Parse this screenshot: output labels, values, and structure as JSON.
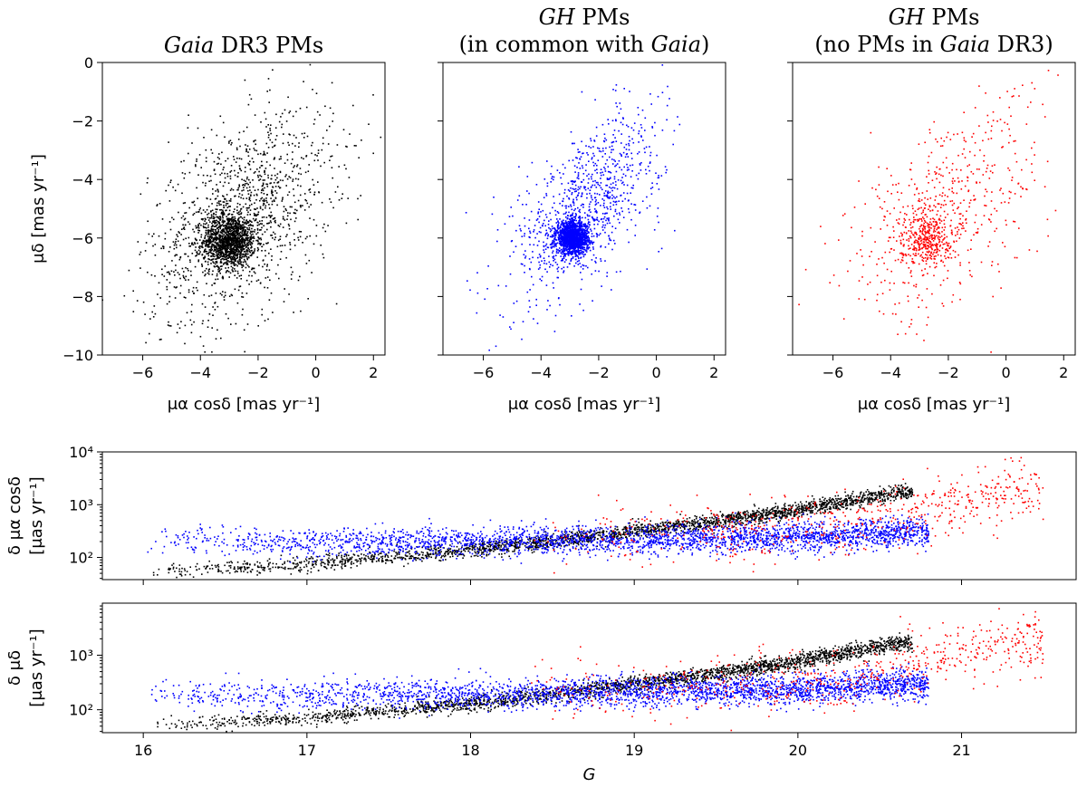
{
  "chart_data": [
    {
      "type": "scatter",
      "id": "panel-gaia",
      "title_parts": [
        {
          "text": "Gaia",
          "italic": true
        },
        {
          "text": " DR3 PMs",
          "italic": false
        }
      ],
      "title_lines": 1,
      "xlabel": "μα cosδ [mas yr⁻¹]",
      "ylabel": "μδ [mas yr⁻¹]",
      "xlim": [
        -7.4,
        2.4
      ],
      "ylim": [
        -10,
        0
      ],
      "xticks": [
        -6,
        -4,
        -2,
        0,
        2
      ],
      "xtick_labels": [
        "−6",
        "−4",
        "−2",
        "0",
        "2"
      ],
      "yticks": [
        0,
        -2,
        -4,
        -6,
        -8,
        -10
      ],
      "ytick_labels": [
        "0",
        "−2",
        "−4",
        "−6",
        "−8",
        "−10"
      ],
      "series": [
        {
          "name": "Gaia DR3 PMs",
          "color": "#000000",
          "cluster": {
            "n": 1300,
            "cx": -3.0,
            "cy": -6.1,
            "sx": 0.45,
            "sy": 0.45
          },
          "field": {
            "n": 1300,
            "cx": -2.6,
            "cy": -5.3,
            "sx": 1.6,
            "sy": 1.8,
            "corr": 0.45
          }
        }
      ]
    },
    {
      "type": "scatter",
      "id": "panel-gh-common",
      "title_parts": [
        {
          "text": "GH",
          "italic": true
        },
        {
          "text": " PMs",
          "italic": false
        }
      ],
      "title_parts_2": [
        {
          "text": "(in common with ",
          "italic": false
        },
        {
          "text": "Gaia",
          "italic": true
        },
        {
          "text": ")",
          "italic": false
        }
      ],
      "title_lines": 2,
      "xlabel": "μα cosδ [mas yr⁻¹]",
      "ylabel": "",
      "xlim": [
        -7.4,
        2.4
      ],
      "ylim": [
        -10,
        0
      ],
      "xticks": [
        -6,
        -4,
        -2,
        0,
        2
      ],
      "xtick_labels": [
        "−6",
        "−4",
        "−2",
        "0",
        "2"
      ],
      "yticks": [
        0,
        -2,
        -4,
        -6,
        -8,
        -10
      ],
      "ytick_labels": [],
      "series": [
        {
          "name": "GH PMs (in common with Gaia)",
          "color": "#0000ff",
          "cluster": {
            "n": 1500,
            "cx": -2.9,
            "cy": -6.0,
            "sx": 0.28,
            "sy": 0.28
          },
          "field": {
            "n": 900,
            "cx": -2.4,
            "cy": -4.8,
            "sx": 1.3,
            "sy": 1.6,
            "corr": 0.6
          }
        }
      ]
    },
    {
      "type": "scatter",
      "id": "panel-gh-only",
      "title_parts": [
        {
          "text": "GH",
          "italic": true
        },
        {
          "text": " PMs",
          "italic": false
        }
      ],
      "title_parts_2": [
        {
          "text": "(no PMs in ",
          "italic": false
        },
        {
          "text": "Gaia",
          "italic": true
        },
        {
          "text": " DR3)",
          "italic": false
        }
      ],
      "title_lines": 2,
      "xlabel": "μα cosδ [mas yr⁻¹]",
      "ylabel": "",
      "xlim": [
        -7.4,
        2.4
      ],
      "ylim": [
        -10,
        0
      ],
      "xticks": [
        -6,
        -4,
        -2,
        0,
        2
      ],
      "xtick_labels": [
        "−6",
        "−4",
        "−2",
        "0",
        "2"
      ],
      "yticks": [
        0,
        -2,
        -4,
        -6,
        -8,
        -10
      ],
      "ytick_labels": [],
      "series": [
        {
          "name": "GH PMs (no PMs in Gaia DR3)",
          "color": "#ff0000",
          "cluster": {
            "n": 350,
            "cx": -2.8,
            "cy": -6.0,
            "sx": 0.45,
            "sy": 0.45
          },
          "field": {
            "n": 550,
            "cx": -2.2,
            "cy": -5.2,
            "sx": 1.7,
            "sy": 1.9,
            "corr": 0.5
          }
        }
      ]
    },
    {
      "type": "scatter",
      "id": "panel-err-ra",
      "yscale": "log",
      "xlabel": "",
      "ylabel_line1": "δ μα cosδ",
      "ylabel_line2": "[μas yr⁻¹]",
      "xlim": [
        15.75,
        21.7
      ],
      "ylim": [
        38,
        10000
      ],
      "xticks": [
        16,
        17,
        18,
        19,
        20,
        21
      ],
      "xtick_labels": [],
      "yticks": [
        100,
        1000,
        10000
      ],
      "ytick_labels": [
        "10²",
        "10³",
        "10⁴"
      ],
      "series": [
        {
          "name": "Gaia DR3",
          "color": "#000000",
          "n": 2400,
          "g_range": [
            16.0,
            20.7
          ],
          "trend": [
            [
              16.0,
              50
            ],
            [
              17.0,
              75
            ],
            [
              18.0,
              140
            ],
            [
              18.5,
              200
            ],
            [
              19.0,
              310
            ],
            [
              19.5,
              480
            ],
            [
              20.0,
              800
            ],
            [
              20.6,
              1700
            ]
          ],
          "scatter_dex": 0.07
        },
        {
          "name": "GH in common with Gaia",
          "color": "#0000ff",
          "n": 2800,
          "g_range": [
            16.0,
            20.8
          ],
          "trend": [
            [
              16.0,
              200
            ],
            [
              17.0,
              190
            ],
            [
              18.0,
              200
            ],
            [
              19.0,
              220
            ],
            [
              20.0,
              240
            ],
            [
              20.6,
              290
            ]
          ],
          "scatter_dex": 0.14
        },
        {
          "name": "GH no PMs in Gaia",
          "color": "#ff0000",
          "n": 600,
          "g_range": [
            18.3,
            21.5
          ],
          "trend": [
            [
              18.3,
              250
            ],
            [
              19.5,
              300
            ],
            [
              20.3,
              400
            ],
            [
              20.8,
              900
            ],
            [
              21.3,
              1800
            ]
          ],
          "scatter_dex": 0.28
        }
      ]
    },
    {
      "type": "scatter",
      "id": "panel-err-dec",
      "yscale": "log",
      "xlabel": "G",
      "ylabel_line1": "δ μδ",
      "ylabel_line2": "[μas yr⁻¹]",
      "xlim": [
        15.75,
        21.7
      ],
      "ylim": [
        38,
        9000
      ],
      "xticks": [
        16,
        17,
        18,
        19,
        20,
        21
      ],
      "xtick_labels": [
        "16",
        "17",
        "18",
        "19",
        "20",
        "21"
      ],
      "yticks": [
        100,
        1000
      ],
      "ytick_labels": [
        "10²",
        "10³"
      ],
      "series": [
        {
          "name": "Gaia DR3",
          "color": "#000000",
          "n": 2400,
          "g_range": [
            16.0,
            20.7
          ],
          "trend": [
            [
              16.0,
              48
            ],
            [
              17.0,
              70
            ],
            [
              18.0,
              130
            ],
            [
              18.5,
              190
            ],
            [
              19.0,
              300
            ],
            [
              19.5,
              460
            ],
            [
              20.0,
              780
            ],
            [
              20.6,
              1650
            ]
          ],
          "scatter_dex": 0.07
        },
        {
          "name": "GH in common with Gaia",
          "color": "#0000ff",
          "n": 2800,
          "g_range": [
            16.0,
            20.8
          ],
          "trend": [
            [
              16.0,
              200
            ],
            [
              17.0,
              185
            ],
            [
              18.0,
              190
            ],
            [
              19.0,
              210
            ],
            [
              20.0,
              235
            ],
            [
              20.6,
              280
            ]
          ],
          "scatter_dex": 0.14
        },
        {
          "name": "GH no PMs in Gaia",
          "color": "#ff0000",
          "n": 600,
          "g_range": [
            18.3,
            21.5
          ],
          "trend": [
            [
              18.3,
              240
            ],
            [
              19.5,
              290
            ],
            [
              20.3,
              380
            ],
            [
              20.8,
              850
            ],
            [
              21.3,
              1700
            ]
          ],
          "scatter_dex": 0.28
        }
      ]
    }
  ]
}
